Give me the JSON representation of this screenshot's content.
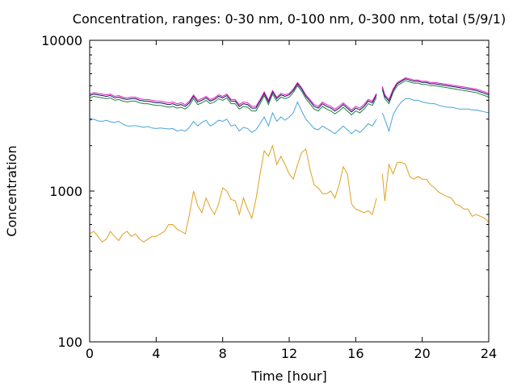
{
  "chart_data": {
    "type": "line",
    "title": "Concentration, ranges: 0-30 nm, 0-100 nm, 0-300 nm, total (5/9/1)",
    "xlabel": "Time [hour]",
    "ylabel": "Concentration",
    "xlim": [
      0,
      24
    ],
    "ylim": [
      100,
      10000
    ],
    "yscale": "log",
    "xticks": [
      0,
      4,
      8,
      12,
      16,
      20,
      24
    ],
    "xtick_labels": [
      "0",
      "4",
      "8",
      "12",
      "16",
      "20",
      "24"
    ],
    "yticks": [
      100,
      1000,
      10000
    ],
    "ytick_labels": [
      "100",
      "1000",
      "10000"
    ],
    "grid": false,
    "legend": "none",
    "gap": [
      17.3,
      17.6
    ],
    "series": [
      {
        "color": "#e0a020",
        "x": [
          0,
          0.25,
          0.5,
          0.75,
          1,
          1.25,
          1.5,
          1.75,
          2,
          2.25,
          2.5,
          2.75,
          3,
          3.25,
          3.5,
          3.75,
          4,
          4.25,
          4.5,
          4.75,
          5,
          5.25,
          5.5,
          5.75,
          6,
          6.25,
          6.5,
          6.75,
          7,
          7.25,
          7.5,
          7.75,
          8,
          8.25,
          8.5,
          8.75,
          9,
          9.25,
          9.5,
          9.75,
          10,
          10.25,
          10.5,
          10.75,
          11,
          11.25,
          11.5,
          11.75,
          12,
          12.25,
          12.5,
          12.75,
          13,
          13.25,
          13.5,
          13.75,
          14,
          14.25,
          14.5,
          14.75,
          15,
          15.25,
          15.5,
          15.75,
          16,
          16.25,
          16.5,
          16.75,
          17,
          17.25,
          17.6,
          17.75,
          18,
          18.25,
          18.5,
          18.75,
          19,
          19.25,
          19.5,
          19.75,
          20,
          20.25,
          20.5,
          20.75,
          21,
          21.25,
          21.5,
          21.75,
          22,
          22.25,
          22.5,
          22.75,
          23,
          23.25,
          23.5,
          23.75,
          24
        ],
        "values": [
          520,
          540,
          500,
          460,
          480,
          540,
          500,
          470,
          520,
          540,
          500,
          520,
          480,
          460,
          480,
          500,
          500,
          520,
          540,
          600,
          600,
          560,
          540,
          520,
          700,
          1000,
          800,
          720,
          900,
          780,
          700,
          820,
          1050,
          1000,
          880,
          860,
          700,
          900,
          760,
          660,
          880,
          1300,
          1850,
          1700,
          2000,
          1500,
          1700,
          1500,
          1300,
          1200,
          1500,
          1800,
          1900,
          1400,
          1100,
          1050,
          960,
          960,
          1000,
          900,
          1100,
          1450,
          1300,
          820,
          760,
          740,
          720,
          740,
          700,
          900,
          1300,
          860,
          1500,
          1300,
          1550,
          1550,
          1500,
          1250,
          1200,
          1250,
          1200,
          1200,
          1100,
          1050,
          980,
          950,
          920,
          900,
          820,
          800,
          760,
          760,
          680,
          700,
          680,
          660,
          620
        ]
      },
      {
        "color": "#4aa3d8",
        "x": [
          0,
          0.25,
          0.5,
          0.75,
          1,
          1.25,
          1.5,
          1.75,
          2,
          2.25,
          2.5,
          2.75,
          3,
          3.25,
          3.5,
          3.75,
          4,
          4.25,
          4.5,
          4.75,
          5,
          5.25,
          5.5,
          5.75,
          6,
          6.25,
          6.5,
          6.75,
          7,
          7.25,
          7.5,
          7.75,
          8,
          8.25,
          8.5,
          8.75,
          9,
          9.25,
          9.5,
          9.75,
          10,
          10.25,
          10.5,
          10.75,
          11,
          11.25,
          11.5,
          11.75,
          12,
          12.25,
          12.5,
          12.75,
          13,
          13.25,
          13.5,
          13.75,
          14,
          14.25,
          14.5,
          14.75,
          15,
          15.25,
          15.5,
          15.75,
          16,
          16.25,
          16.5,
          16.75,
          17,
          17.25,
          17.6,
          17.75,
          18,
          18.25,
          18.5,
          18.75,
          19,
          19.25,
          19.5,
          19.75,
          20,
          20.25,
          20.5,
          20.75,
          21,
          21.25,
          21.5,
          21.75,
          22,
          22.25,
          22.5,
          22.75,
          23,
          23.25,
          23.5,
          23.75,
          24
        ],
        "values": [
          2950,
          3000,
          2920,
          2900,
          2950,
          2880,
          2850,
          2900,
          2780,
          2700,
          2700,
          2720,
          2680,
          2650,
          2680,
          2620,
          2600,
          2620,
          2600,
          2580,
          2600,
          2500,
          2550,
          2500,
          2650,
          2900,
          2700,
          2850,
          2950,
          2700,
          2800,
          2950,
          2900,
          3000,
          2700,
          2750,
          2500,
          2650,
          2600,
          2450,
          2550,
          2800,
          3100,
          2700,
          3300,
          2900,
          3100,
          2950,
          3100,
          3300,
          3900,
          3400,
          3000,
          2800,
          2600,
          2550,
          2700,
          2600,
          2500,
          2400,
          2550,
          2700,
          2550,
          2400,
          2550,
          2450,
          2600,
          2800,
          2700,
          3000,
          3300,
          3000,
          2500,
          3200,
          3600,
          3900,
          4100,
          4100,
          4000,
          4000,
          3900,
          3850,
          3800,
          3800,
          3700,
          3650,
          3600,
          3600,
          3550,
          3500,
          3500,
          3500,
          3450,
          3450,
          3400,
          3350,
          3300
        ]
      },
      {
        "color": "#208040",
        "x": [
          0,
          0.25,
          0.5,
          0.75,
          1,
          1.25,
          1.5,
          1.75,
          2,
          2.25,
          2.5,
          2.75,
          3,
          3.25,
          3.5,
          3.75,
          4,
          4.25,
          4.5,
          4.75,
          5,
          5.25,
          5.5,
          5.75,
          6,
          6.25,
          6.5,
          6.75,
          7,
          7.25,
          7.5,
          7.75,
          8,
          8.25,
          8.5,
          8.75,
          9,
          9.25,
          9.5,
          9.75,
          10,
          10.25,
          10.5,
          10.75,
          11,
          11.25,
          11.5,
          11.75,
          12,
          12.25,
          12.5,
          12.75,
          13,
          13.25,
          13.5,
          13.75,
          14,
          14.25,
          14.5,
          14.75,
          15,
          15.25,
          15.5,
          15.75,
          16,
          16.25,
          16.5,
          16.75,
          17,
          17.25,
          17.6,
          17.75,
          18,
          18.25,
          18.5,
          18.75,
          19,
          19.25,
          19.5,
          19.75,
          20,
          20.25,
          20.5,
          20.75,
          21,
          21.25,
          21.5,
          21.75,
          22,
          22.25,
          22.5,
          22.75,
          23,
          23.25,
          23.5,
          23.75,
          24
        ],
        "values": [
          4150,
          4250,
          4200,
          4150,
          4100,
          4150,
          4000,
          4050,
          3950,
          3900,
          3950,
          3950,
          3850,
          3800,
          3800,
          3750,
          3700,
          3700,
          3650,
          3600,
          3650,
          3550,
          3600,
          3500,
          3700,
          4100,
          3750,
          3850,
          4000,
          3800,
          3900,
          4100,
          4000,
          4150,
          3800,
          3800,
          3500,
          3650,
          3600,
          3400,
          3400,
          3800,
          4300,
          3750,
          4400,
          3950,
          4200,
          4100,
          4200,
          4500,
          5000,
          4600,
          4100,
          3800,
          3500,
          3400,
          3650,
          3500,
          3400,
          3250,
          3400,
          3600,
          3400,
          3200,
          3400,
          3300,
          3500,
          3800,
          3700,
          4200,
          4700,
          4100,
          3800,
          4500,
          5000,
          5200,
          5400,
          5300,
          5200,
          5200,
          5100,
          5100,
          5000,
          5000,
          4950,
          4900,
          4850,
          4800,
          4750,
          4700,
          4650,
          4600,
          4550,
          4500,
          4400,
          4300,
          4200
        ]
      },
      {
        "color": "#101060",
        "x": [
          0,
          0.25,
          0.5,
          0.75,
          1,
          1.25,
          1.5,
          1.75,
          2,
          2.25,
          2.5,
          2.75,
          3,
          3.25,
          3.5,
          3.75,
          4,
          4.25,
          4.5,
          4.75,
          5,
          5.25,
          5.5,
          5.75,
          6,
          6.25,
          6.5,
          6.75,
          7,
          7.25,
          7.5,
          7.75,
          8,
          8.25,
          8.5,
          8.75,
          9,
          9.25,
          9.5,
          9.75,
          10,
          10.25,
          10.5,
          10.75,
          11,
          11.25,
          11.5,
          11.75,
          12,
          12.25,
          12.5,
          12.75,
          13,
          13.25,
          13.5,
          13.75,
          14,
          14.25,
          14.5,
          14.75,
          15,
          15.25,
          15.5,
          15.75,
          16,
          16.25,
          16.5,
          16.75,
          17,
          17.25,
          17.6,
          17.75,
          18,
          18.25,
          18.5,
          18.75,
          19,
          19.25,
          19.5,
          19.75,
          20,
          20.25,
          20.5,
          20.75,
          21,
          21.25,
          21.5,
          21.75,
          22,
          22.25,
          22.5,
          22.75,
          23,
          23.25,
          23.5,
          23.75,
          24
        ],
        "values": [
          4300,
          4400,
          4350,
          4300,
          4250,
          4300,
          4150,
          4200,
          4100,
          4050,
          4100,
          4100,
          4000,
          3950,
          3950,
          3900,
          3850,
          3850,
          3800,
          3750,
          3800,
          3700,
          3750,
          3650,
          3850,
          4250,
          3900,
          4000,
          4150,
          3950,
          4050,
          4250,
          4150,
          4300,
          3950,
          3950,
          3650,
          3800,
          3750,
          3550,
          3550,
          3950,
          4450,
          3900,
          4550,
          4100,
          4350,
          4250,
          4350,
          4650,
          5150,
          4750,
          4250,
          3950,
          3650,
          3550,
          3800,
          3650,
          3550,
          3400,
          3550,
          3750,
          3550,
          3350,
          3550,
          3450,
          3650,
          3950,
          3850,
          4350,
          4850,
          4250,
          3950,
          4650,
          5150,
          5350,
          5550,
          5450,
          5350,
          5350,
          5250,
          5250,
          5150,
          5150,
          5100,
          5050,
          5000,
          4950,
          4900,
          4850,
          4800,
          4750,
          4700,
          4650,
          4550,
          4450,
          4350
        ]
      },
      {
        "color": "#e020c0",
        "x": [
          0,
          0.25,
          0.5,
          0.75,
          1,
          1.25,
          1.5,
          1.75,
          2,
          2.25,
          2.5,
          2.75,
          3,
          3.25,
          3.5,
          3.75,
          4,
          4.25,
          4.5,
          4.75,
          5,
          5.25,
          5.5,
          5.75,
          6,
          6.25,
          6.5,
          6.75,
          7,
          7.25,
          7.5,
          7.75,
          8,
          8.25,
          8.5,
          8.75,
          9,
          9.25,
          9.5,
          9.75,
          10,
          10.25,
          10.5,
          10.75,
          11,
          11.25,
          11.5,
          11.75,
          12,
          12.25,
          12.5,
          12.75,
          13,
          13.25,
          13.5,
          13.75,
          14,
          14.25,
          14.5,
          14.75,
          15,
          15.25,
          15.5,
          15.75,
          16,
          16.25,
          16.5,
          16.75,
          17,
          17.25,
          17.6,
          17.75,
          18,
          18.25,
          18.5,
          18.75,
          19,
          19.25,
          19.5,
          19.75,
          20,
          20.25,
          20.5,
          20.75,
          21,
          21.25,
          21.5,
          21.75,
          22,
          22.25,
          22.5,
          22.75,
          23,
          23.25,
          23.5,
          23.75,
          24
        ],
        "values": [
          4400,
          4500,
          4450,
          4400,
          4350,
          4400,
          4250,
          4300,
          4200,
          4150,
          4200,
          4200,
          4100,
          4050,
          4050,
          4000,
          3950,
          3950,
          3900,
          3850,
          3900,
          3800,
          3850,
          3750,
          3950,
          4350,
          4000,
          4100,
          4250,
          4050,
          4150,
          4350,
          4250,
          4400,
          4050,
          4050,
          3750,
          3900,
          3850,
          3650,
          3650,
          4050,
          4550,
          4000,
          4650,
          4200,
          4450,
          4350,
          4450,
          4750,
          5250,
          4850,
          4350,
          4050,
          3750,
          3650,
          3900,
          3750,
          3650,
          3500,
          3650,
          3850,
          3650,
          3450,
          3650,
          3550,
          3750,
          4050,
          3950,
          4450,
          4950,
          4350,
          4050,
          4750,
          5250,
          5450,
          5650,
          5550,
          5450,
          5450,
          5350,
          5350,
          5250,
          5250,
          5200,
          5150,
          5100,
          5050,
          5000,
          4950,
          4900,
          4850,
          4800,
          4750,
          4650,
          4550,
          4450
        ]
      }
    ]
  }
}
